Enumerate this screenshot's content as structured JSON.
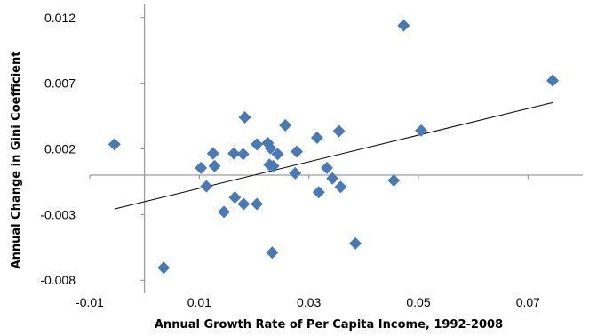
{
  "chart_data": {
    "type": "scatter",
    "xlabel": "Annual Growth Rate of Per Capita Income, 1992-2008",
    "ylabel": "Annual Change in Gini Coefficient",
    "xlim": [
      -0.01,
      0.08
    ],
    "ylim": [
      -0.009,
      0.013
    ],
    "x_ticks": [
      "-0.01",
      "0.01",
      "0.03",
      "0.05",
      "0.07"
    ],
    "x_tick_values": [
      -0.01,
      0.01,
      0.03,
      0.05,
      0.07
    ],
    "y_ticks": [
      "0.012",
      "0.007",
      "0.002",
      "-0.003",
      "-0.008"
    ],
    "y_tick_values": [
      0.012,
      0.007,
      0.002,
      -0.003,
      -0.008
    ],
    "grid": false,
    "point_color": "#4a7ab5",
    "trendline": {
      "x": [
        -0.0055,
        0.0745
      ],
      "y": [
        -0.00258,
        0.00553
      ]
    },
    "points": [
      {
        "x": -0.0055,
        "y": 0.00235
      },
      {
        "x": 0.0035,
        "y": -0.00705
      },
      {
        "x": 0.0103,
        "y": 0.00055
      },
      {
        "x": 0.0113,
        "y": -0.00085
      },
      {
        "x": 0.0125,
        "y": 0.00165
      },
      {
        "x": 0.0128,
        "y": 0.0007
      },
      {
        "x": 0.0145,
        "y": -0.0028
      },
      {
        "x": 0.0163,
        "y": 0.00165
      },
      {
        "x": 0.0165,
        "y": -0.0017
      },
      {
        "x": 0.018,
        "y": 0.0016
      },
      {
        "x": 0.0183,
        "y": 0.0044
      },
      {
        "x": 0.0181,
        "y": -0.0022
      },
      {
        "x": 0.0205,
        "y": 0.00235
      },
      {
        "x": 0.0205,
        "y": -0.0022
      },
      {
        "x": 0.0225,
        "y": 0.00245
      },
      {
        "x": 0.023,
        "y": 0.00205
      },
      {
        "x": 0.0228,
        "y": 0.0008
      },
      {
        "x": 0.0235,
        "y": 0.0007
      },
      {
        "x": 0.0243,
        "y": 0.0016
      },
      {
        "x": 0.0233,
        "y": -0.0059
      },
      {
        "x": 0.0257,
        "y": 0.0038
      },
      {
        "x": 0.0275,
        "y": 0.00015
      },
      {
        "x": 0.0278,
        "y": 0.0018
      },
      {
        "x": 0.0315,
        "y": 0.00285
      },
      {
        "x": 0.0318,
        "y": -0.0013
      },
      {
        "x": 0.0333,
        "y": 0.00055
      },
      {
        "x": 0.0343,
        "y": -0.00025
      },
      {
        "x": 0.0355,
        "y": 0.00335
      },
      {
        "x": 0.0358,
        "y": -0.0009
      },
      {
        "x": 0.0385,
        "y": -0.0052
      },
      {
        "x": 0.0455,
        "y": -0.0004
      },
      {
        "x": 0.0473,
        "y": 0.0114
      },
      {
        "x": 0.0505,
        "y": 0.0034
      },
      {
        "x": 0.0745,
        "y": 0.0072
      }
    ]
  }
}
